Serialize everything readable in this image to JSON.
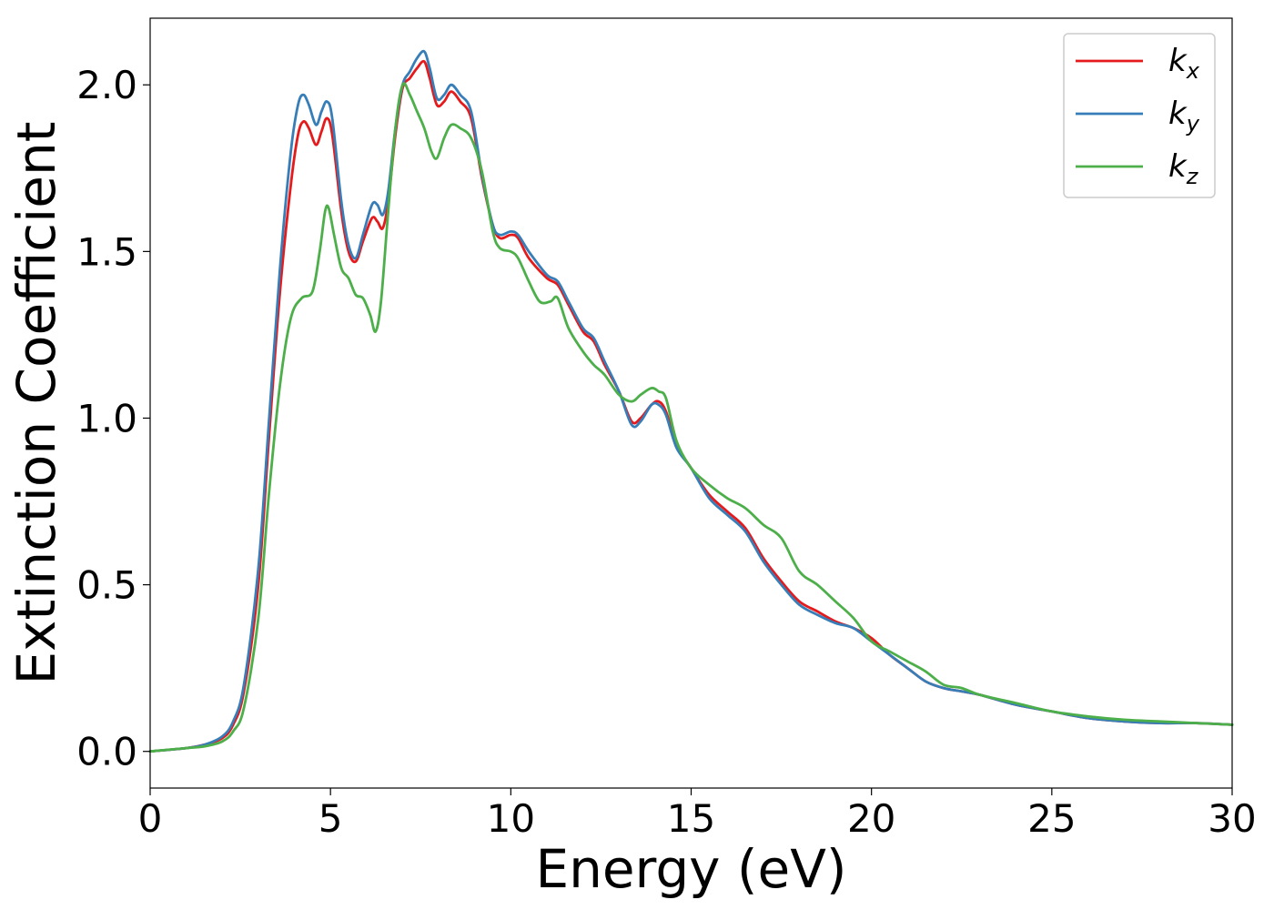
{
  "chart_data": {
    "type": "line",
    "xlabel": "Energy (eV)",
    "ylabel": "Extinction Coefficient",
    "xlim": [
      0,
      30
    ],
    "ylim": [
      -0.11,
      2.2
    ],
    "xticks": [
      0,
      5,
      10,
      15,
      20,
      25,
      30
    ],
    "yticks": [
      0.0,
      0.5,
      1.0,
      1.5,
      2.0
    ],
    "xtick_labels": [
      "0",
      "5",
      "10",
      "15",
      "20",
      "25",
      "30"
    ],
    "ytick_labels": [
      "0.0",
      "0.5",
      "1.0",
      "1.5",
      "2.0"
    ],
    "grid": false,
    "legend_position": "top-right",
    "series": [
      {
        "name": "k",
        "subscript": "x",
        "color": "#e41a1c",
        "points": [
          [
            0,
            0
          ],
          [
            1,
            0.01
          ],
          [
            1.5,
            0.02
          ],
          [
            2,
            0.04
          ],
          [
            2.3,
            0.08
          ],
          [
            2.6,
            0.18
          ],
          [
            3,
            0.5
          ],
          [
            3.3,
            0.95
          ],
          [
            3.6,
            1.38
          ],
          [
            3.9,
            1.7
          ],
          [
            4.1,
            1.85
          ],
          [
            4.25,
            1.89
          ],
          [
            4.4,
            1.87
          ],
          [
            4.6,
            1.82
          ],
          [
            4.75,
            1.86
          ],
          [
            4.9,
            1.9
          ],
          [
            5.05,
            1.85
          ],
          [
            5.3,
            1.62
          ],
          [
            5.5,
            1.5
          ],
          [
            5.7,
            1.47
          ],
          [
            5.9,
            1.53
          ],
          [
            6.15,
            1.6
          ],
          [
            6.3,
            1.59
          ],
          [
            6.45,
            1.57
          ],
          [
            6.6,
            1.65
          ],
          [
            6.8,
            1.85
          ],
          [
            7,
            1.99
          ],
          [
            7.2,
            2.02
          ],
          [
            7.4,
            2.05
          ],
          [
            7.6,
            2.07
          ],
          [
            7.75,
            2.02
          ],
          [
            7.95,
            1.94
          ],
          [
            8.15,
            1.95
          ],
          [
            8.35,
            1.98
          ],
          [
            8.6,
            1.95
          ],
          [
            8.9,
            1.9
          ],
          [
            9.2,
            1.72
          ],
          [
            9.5,
            1.58
          ],
          [
            9.7,
            1.54
          ],
          [
            10,
            1.55
          ],
          [
            10.2,
            1.54
          ],
          [
            10.5,
            1.48
          ],
          [
            11,
            1.42
          ],
          [
            11.3,
            1.4
          ],
          [
            11.6,
            1.34
          ],
          [
            12,
            1.26
          ],
          [
            12.3,
            1.23
          ],
          [
            12.6,
            1.16
          ],
          [
            13,
            1.08
          ],
          [
            13.35,
            0.99
          ],
          [
            13.6,
            1.0
          ],
          [
            13.9,
            1.04
          ],
          [
            14.1,
            1.05
          ],
          [
            14.3,
            1.02
          ],
          [
            14.6,
            0.92
          ],
          [
            15,
            0.85
          ],
          [
            15.5,
            0.77
          ],
          [
            16,
            0.72
          ],
          [
            16.5,
            0.67
          ],
          [
            17,
            0.58
          ],
          [
            17.5,
            0.51
          ],
          [
            18,
            0.45
          ],
          [
            18.5,
            0.42
          ],
          [
            19,
            0.39
          ],
          [
            19.5,
            0.37
          ],
          [
            20,
            0.34
          ],
          [
            20.5,
            0.29
          ],
          [
            21,
            0.25
          ],
          [
            21.5,
            0.21
          ],
          [
            22,
            0.19
          ],
          [
            22.5,
            0.18
          ],
          [
            23,
            0.17
          ],
          [
            24,
            0.14
          ],
          [
            25,
            0.12
          ],
          [
            26,
            0.1
          ],
          [
            27,
            0.09
          ],
          [
            28,
            0.085
          ],
          [
            29,
            0.085
          ],
          [
            30,
            0.08
          ]
        ]
      },
      {
        "name": "k",
        "subscript": "y",
        "color": "#377eb8",
        "points": [
          [
            0,
            0
          ],
          [
            1,
            0.01
          ],
          [
            1.5,
            0.02
          ],
          [
            2,
            0.045
          ],
          [
            2.3,
            0.09
          ],
          [
            2.6,
            0.2
          ],
          [
            3,
            0.55
          ],
          [
            3.3,
            1.0
          ],
          [
            3.6,
            1.45
          ],
          [
            3.9,
            1.8
          ],
          [
            4.1,
            1.94
          ],
          [
            4.25,
            1.97
          ],
          [
            4.4,
            1.94
          ],
          [
            4.6,
            1.88
          ],
          [
            4.75,
            1.92
          ],
          [
            4.9,
            1.95
          ],
          [
            5.05,
            1.9
          ],
          [
            5.3,
            1.65
          ],
          [
            5.5,
            1.52
          ],
          [
            5.7,
            1.48
          ],
          [
            5.9,
            1.55
          ],
          [
            6.15,
            1.64
          ],
          [
            6.3,
            1.64
          ],
          [
            6.45,
            1.61
          ],
          [
            6.6,
            1.68
          ],
          [
            6.8,
            1.87
          ],
          [
            7,
            2.0
          ],
          [
            7.2,
            2.04
          ],
          [
            7.4,
            2.08
          ],
          [
            7.6,
            2.1
          ],
          [
            7.75,
            2.05
          ],
          [
            7.95,
            1.96
          ],
          [
            8.15,
            1.97
          ],
          [
            8.35,
            2.0
          ],
          [
            8.6,
            1.97
          ],
          [
            8.9,
            1.92
          ],
          [
            9.2,
            1.73
          ],
          [
            9.5,
            1.58
          ],
          [
            9.7,
            1.55
          ],
          [
            10,
            1.56
          ],
          [
            10.2,
            1.55
          ],
          [
            10.5,
            1.5
          ],
          [
            11,
            1.43
          ],
          [
            11.3,
            1.41
          ],
          [
            11.6,
            1.35
          ],
          [
            12,
            1.27
          ],
          [
            12.3,
            1.24
          ],
          [
            12.6,
            1.17
          ],
          [
            13,
            1.08
          ],
          [
            13.35,
            0.98
          ],
          [
            13.6,
            0.99
          ],
          [
            13.9,
            1.04
          ],
          [
            14.1,
            1.04
          ],
          [
            14.3,
            1.01
          ],
          [
            14.6,
            0.91
          ],
          [
            15,
            0.85
          ],
          [
            15.5,
            0.76
          ],
          [
            16,
            0.71
          ],
          [
            16.5,
            0.66
          ],
          [
            17,
            0.57
          ],
          [
            17.5,
            0.5
          ],
          [
            18,
            0.44
          ],
          [
            18.5,
            0.41
          ],
          [
            19,
            0.385
          ],
          [
            19.5,
            0.37
          ],
          [
            20,
            0.33
          ],
          [
            20.5,
            0.29
          ],
          [
            21,
            0.25
          ],
          [
            21.5,
            0.21
          ],
          [
            22,
            0.19
          ],
          [
            22.5,
            0.18
          ],
          [
            23,
            0.17
          ],
          [
            24,
            0.14
          ],
          [
            25,
            0.12
          ],
          [
            26,
            0.1
          ],
          [
            27,
            0.09
          ],
          [
            28,
            0.085
          ],
          [
            29,
            0.085
          ],
          [
            30,
            0.08
          ]
        ]
      },
      {
        "name": "k",
        "subscript": "z",
        "color": "#4daf4a",
        "points": [
          [
            0,
            0
          ],
          [
            1,
            0.01
          ],
          [
            1.5,
            0.015
          ],
          [
            2,
            0.03
          ],
          [
            2.3,
            0.06
          ],
          [
            2.6,
            0.13
          ],
          [
            3,
            0.4
          ],
          [
            3.3,
            0.78
          ],
          [
            3.6,
            1.1
          ],
          [
            3.9,
            1.3
          ],
          [
            4.2,
            1.36
          ],
          [
            4.5,
            1.38
          ],
          [
            4.7,
            1.5
          ],
          [
            4.85,
            1.62
          ],
          [
            4.95,
            1.63
          ],
          [
            5.1,
            1.55
          ],
          [
            5.3,
            1.45
          ],
          [
            5.5,
            1.42
          ],
          [
            5.7,
            1.37
          ],
          [
            5.9,
            1.36
          ],
          [
            6.1,
            1.31
          ],
          [
            6.25,
            1.26
          ],
          [
            6.4,
            1.35
          ],
          [
            6.6,
            1.62
          ],
          [
            6.8,
            1.87
          ],
          [
            7,
            2.0
          ],
          [
            7.2,
            1.97
          ],
          [
            7.4,
            1.92
          ],
          [
            7.6,
            1.87
          ],
          [
            7.8,
            1.8
          ],
          [
            7.95,
            1.78
          ],
          [
            8.15,
            1.84
          ],
          [
            8.35,
            1.88
          ],
          [
            8.6,
            1.87
          ],
          [
            8.9,
            1.84
          ],
          [
            9.2,
            1.74
          ],
          [
            9.5,
            1.56
          ],
          [
            9.7,
            1.51
          ],
          [
            10,
            1.5
          ],
          [
            10.2,
            1.48
          ],
          [
            10.5,
            1.41
          ],
          [
            10.8,
            1.35
          ],
          [
            11.1,
            1.35
          ],
          [
            11.3,
            1.36
          ],
          [
            11.6,
            1.27
          ],
          [
            12,
            1.2
          ],
          [
            12.3,
            1.16
          ],
          [
            12.6,
            1.13
          ],
          [
            13,
            1.07
          ],
          [
            13.35,
            1.05
          ],
          [
            13.6,
            1.07
          ],
          [
            13.9,
            1.09
          ],
          [
            14.1,
            1.08
          ],
          [
            14.3,
            1.06
          ],
          [
            14.6,
            0.93
          ],
          [
            15,
            0.85
          ],
          [
            15.5,
            0.8
          ],
          [
            16,
            0.76
          ],
          [
            16.5,
            0.73
          ],
          [
            17,
            0.68
          ],
          [
            17.5,
            0.64
          ],
          [
            18,
            0.54
          ],
          [
            18.5,
            0.5
          ],
          [
            19,
            0.45
          ],
          [
            19.5,
            0.4
          ],
          [
            20,
            0.33
          ],
          [
            20.5,
            0.3
          ],
          [
            21,
            0.27
          ],
          [
            21.5,
            0.24
          ],
          [
            22,
            0.2
          ],
          [
            22.5,
            0.19
          ],
          [
            23,
            0.17
          ],
          [
            24,
            0.145
          ],
          [
            25,
            0.12
          ],
          [
            26,
            0.105
          ],
          [
            27,
            0.095
          ],
          [
            28,
            0.09
          ],
          [
            29,
            0.085
          ],
          [
            30,
            0.08
          ]
        ]
      }
    ]
  }
}
